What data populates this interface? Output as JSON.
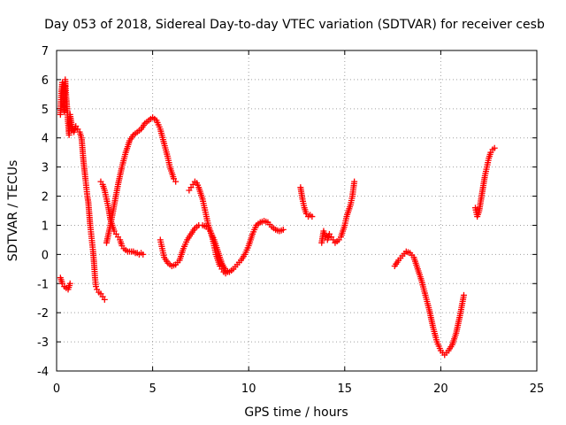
{
  "chart_data": {
    "type": "scatter",
    "title": "Day 053 of 2018, Sidereal Day-to-day VTEC variation (SDTVAR) for receiver cesb",
    "xlabel": "GPS time / hours",
    "ylabel": "SDTVAR / TECUs",
    "xlim": [
      0,
      25
    ],
    "ylim": [
      -4,
      7
    ],
    "xticks": [
      0,
      5,
      10,
      15,
      20,
      25
    ],
    "yticks": [
      -4,
      -3,
      -2,
      -1,
      0,
      1,
      2,
      3,
      4,
      5,
      6,
      7
    ],
    "grid": true,
    "marker": "+",
    "color": "#ff0000",
    "series": [
      {
        "name": "segment-1-upper",
        "x": [
          0.2,
          0.25,
          0.3,
          0.35,
          0.4,
          0.45,
          0.5,
          0.55,
          0.6,
          0.65,
          0.7,
          0.8,
          0.9,
          1.0,
          1.1,
          1.2,
          1.3,
          1.4,
          1.5,
          1.55,
          1.6,
          1.65,
          1.7,
          1.75,
          1.8,
          1.85,
          1.9,
          1.95,
          2.0,
          2.05,
          2.1,
          2.2,
          2.3,
          2.4,
          2.5
        ],
        "y": [
          4.8,
          5.6,
          5.9,
          5.2,
          4.9,
          6.0,
          5.4,
          5.0,
          4.5,
          4.1,
          4.8,
          4.4,
          4.2,
          4.4,
          4.3,
          4.2,
          4.0,
          3.2,
          2.6,
          2.3,
          2.0,
          1.8,
          1.4,
          1.0,
          0.7,
          0.4,
          0.1,
          -0.3,
          -0.8,
          -1.1,
          -1.2,
          -1.3,
          -1.35,
          -1.45,
          -1.55
        ]
      },
      {
        "name": "segment-1-lower",
        "x": [
          0.2,
          0.3,
          0.4,
          0.5,
          0.6,
          0.7
        ],
        "y": [
          -0.8,
          -1.0,
          -1.1,
          -1.15,
          -1.2,
          -1.0
        ]
      },
      {
        "name": "segment-2-falling",
        "x": [
          2.3,
          2.4,
          2.5,
          2.6,
          2.7,
          2.8,
          2.9,
          3.0,
          3.1,
          3.2,
          3.3,
          3.4,
          3.5,
          3.6,
          3.7,
          3.8,
          3.9,
          4.0,
          4.1,
          4.2,
          4.3,
          4.4,
          4.5
        ],
        "y": [
          2.5,
          2.4,
          2.2,
          1.9,
          1.6,
          1.2,
          1.0,
          0.8,
          0.7,
          0.6,
          0.5,
          0.3,
          0.2,
          0.15,
          0.1,
          0.1,
          0.1,
          0.1,
          0.05,
          0.05,
          0.0,
          0.05,
          0.0
        ]
      },
      {
        "name": "segment-2-rising",
        "x": [
          2.6,
          2.8,
          3.0,
          3.2,
          3.4,
          3.6,
          3.8,
          4.0,
          4.2,
          4.4,
          4.6,
          4.8,
          5.0,
          5.2,
          5.4,
          5.6,
          5.8,
          5.9,
          6.0,
          6.1,
          6.2
        ],
        "y": [
          0.4,
          1.0,
          1.7,
          2.4,
          3.0,
          3.5,
          3.9,
          4.1,
          4.2,
          4.3,
          4.5,
          4.6,
          4.7,
          4.6,
          4.3,
          3.8,
          3.3,
          3.0,
          2.8,
          2.6,
          2.5
        ]
      },
      {
        "name": "segment-3",
        "x": [
          5.4,
          5.5,
          5.6,
          5.8,
          6.0,
          6.2,
          6.4,
          6.6,
          6.8,
          7.0,
          7.2,
          7.4,
          7.6,
          7.8,
          8.0,
          8.2,
          8.4,
          8.6,
          8.8,
          9.0,
          9.2,
          9.4,
          9.6,
          9.8,
          10.0,
          10.2,
          10.4,
          10.6,
          10.8,
          11.0,
          11.2,
          11.4,
          11.6,
          11.8
        ],
        "y": [
          0.5,
          0.2,
          -0.1,
          -0.3,
          -0.4,
          -0.35,
          -0.2,
          0.2,
          0.5,
          0.7,
          0.9,
          1.0,
          1.0,
          0.95,
          0.8,
          0.5,
          0.1,
          -0.3,
          -0.55,
          -0.6,
          -0.5,
          -0.35,
          -0.2,
          0.0,
          0.3,
          0.7,
          1.0,
          1.1,
          1.15,
          1.1,
          0.95,
          0.85,
          0.8,
          0.85
        ]
      },
      {
        "name": "segment-3-branch",
        "x": [
          6.9,
          7.0,
          7.1,
          7.2,
          7.3,
          7.4,
          7.5,
          7.6,
          7.7,
          7.8,
          7.9,
          8.0,
          8.1,
          8.2,
          8.3,
          8.4,
          8.5,
          8.6,
          8.7,
          8.8,
          8.9
        ],
        "y": [
          2.2,
          2.3,
          2.4,
          2.5,
          2.45,
          2.3,
          2.1,
          1.9,
          1.6,
          1.3,
          1.0,
          0.8,
          0.6,
          0.3,
          0.0,
          -0.2,
          -0.4,
          -0.5,
          -0.6,
          -0.65,
          -0.6
        ]
      },
      {
        "name": "segment-4",
        "x": [
          12.7,
          12.8,
          12.9,
          13.0,
          13.1,
          13.2,
          13.3
        ],
        "y": [
          2.3,
          1.9,
          1.6,
          1.4,
          1.3,
          1.35,
          1.3
        ]
      },
      {
        "name": "segment-5",
        "x": [
          13.8,
          13.9,
          14.0,
          14.1,
          14.2,
          14.3,
          14.4,
          14.5,
          14.6,
          14.7,
          14.8,
          14.9,
          15.0,
          15.1,
          15.2,
          15.3,
          15.4,
          15.5
        ],
        "y": [
          0.4,
          0.8,
          0.6,
          0.5,
          0.7,
          0.6,
          0.5,
          0.4,
          0.45,
          0.5,
          0.6,
          0.8,
          1.0,
          1.3,
          1.5,
          1.7,
          2.0,
          2.5
        ]
      },
      {
        "name": "segment-6",
        "x": [
          17.6,
          17.8,
          18.0,
          18.2,
          18.4,
          18.6,
          18.8,
          19.0,
          19.2,
          19.4,
          19.6,
          19.8,
          20.0,
          20.2,
          20.4,
          20.6,
          20.8,
          21.0,
          21.2
        ],
        "y": [
          -0.4,
          -0.2,
          -0.05,
          0.1,
          0.05,
          -0.1,
          -0.5,
          -0.9,
          -1.4,
          -1.9,
          -2.5,
          -3.0,
          -3.3,
          -3.45,
          -3.3,
          -3.1,
          -2.7,
          -2.1,
          -1.4
        ]
      },
      {
        "name": "segment-7",
        "x": [
          21.8,
          21.9,
          22.0,
          22.1,
          22.2,
          22.3,
          22.4,
          22.5,
          22.6,
          22.7,
          22.8
        ],
        "y": [
          1.6,
          1.3,
          1.5,
          1.9,
          2.3,
          2.7,
          3.0,
          3.3,
          3.5,
          3.6,
          3.65
        ]
      }
    ]
  }
}
